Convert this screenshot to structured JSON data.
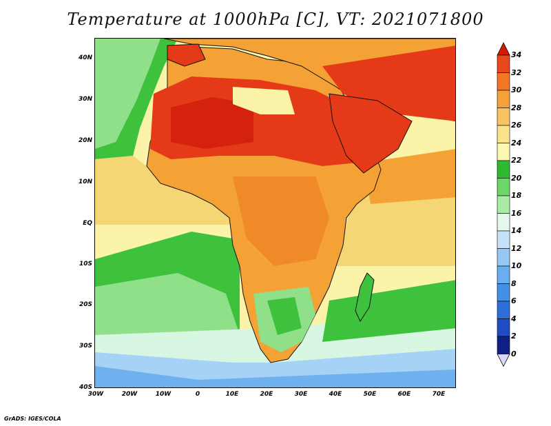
{
  "title": "Temperature at 1000hPa [C], VT: 2021071800",
  "credit": "GrADS: IGES/COLA",
  "map": {
    "lat_ticks": [
      "40N",
      "30N",
      "20N",
      "10N",
      "EQ",
      "10S",
      "20S",
      "30S",
      "40S"
    ],
    "lon_ticks": [
      "30W",
      "20W",
      "10W",
      "0",
      "10E",
      "20E",
      "30E",
      "40E",
      "50E",
      "60E",
      "70E"
    ],
    "colors": {
      "ocean_warm": "#f5d675",
      "ocean_mild": "#fbf3a8",
      "ocean_green": "#3ec23e",
      "ocean_light_green": "#8fe088",
      "ocean_pale": "#d8f7e2",
      "ocean_cold": "#a6d2f5",
      "ocean_colder": "#6fb0ee",
      "land_hot": "#e53a17",
      "land_hot_core": "#d4220f",
      "land_warm": "#f4a235",
      "land_orange": "#f08a28"
    }
  },
  "colorbar": {
    "labels": [
      "34",
      "32",
      "30",
      "28",
      "26",
      "24",
      "22",
      "20",
      "18",
      "16",
      "14",
      "12",
      "10",
      "8",
      "6",
      "4",
      "2",
      "0"
    ],
    "colors": [
      "#d51a0a",
      "#e8481c",
      "#f37724",
      "#f5a03a",
      "#f7c461",
      "#fae38c",
      "#fcf6b3",
      "#2fbb2f",
      "#6dd66a",
      "#aaeaa6",
      "#e4f9ec",
      "#c4e2f9",
      "#97c8f4",
      "#6aaef0",
      "#4290e8",
      "#2c6fdb",
      "#1f4cc4",
      "#0e1f86",
      "#d7d7f7"
    ]
  }
}
